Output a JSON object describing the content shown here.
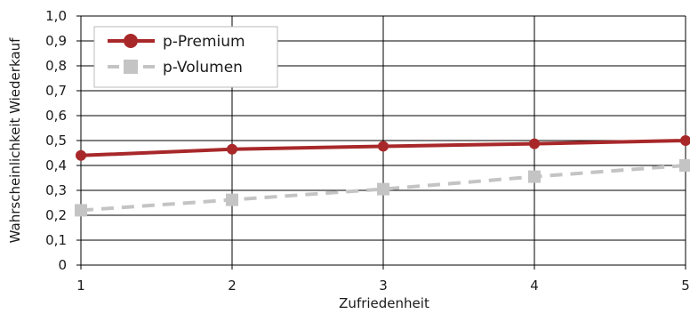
{
  "chart_data": {
    "type": "line",
    "title": "",
    "xlabel": "Zufriedenheit",
    "ylabel": "Wahrscheinlichkeit Wiederkauf",
    "x": [
      1,
      2,
      3,
      4,
      5
    ],
    "xlim": [
      1,
      5
    ],
    "ylim": [
      0,
      1.0
    ],
    "x_tick_labels": [
      "1",
      "2",
      "3",
      "4",
      "5"
    ],
    "y_tick_labels": [
      "0",
      "0,1",
      "0,2",
      "0,3",
      "0,4",
      "0,5",
      "0,6",
      "0,7",
      "0,8",
      "0,9",
      "1,0"
    ],
    "grid": true,
    "legend_position": "top-left",
    "series": [
      {
        "name": "p-Premium",
        "values": [
          0.44,
          0.465,
          0.477,
          0.487,
          0.5
        ],
        "color": "#a8282a",
        "marker": "circle",
        "line": "solid"
      },
      {
        "name": "p-Volumen",
        "values": [
          0.22,
          0.262,
          0.305,
          0.355,
          0.4
        ],
        "color": "#c4c4c4",
        "marker": "square",
        "line": "dashed"
      }
    ]
  }
}
